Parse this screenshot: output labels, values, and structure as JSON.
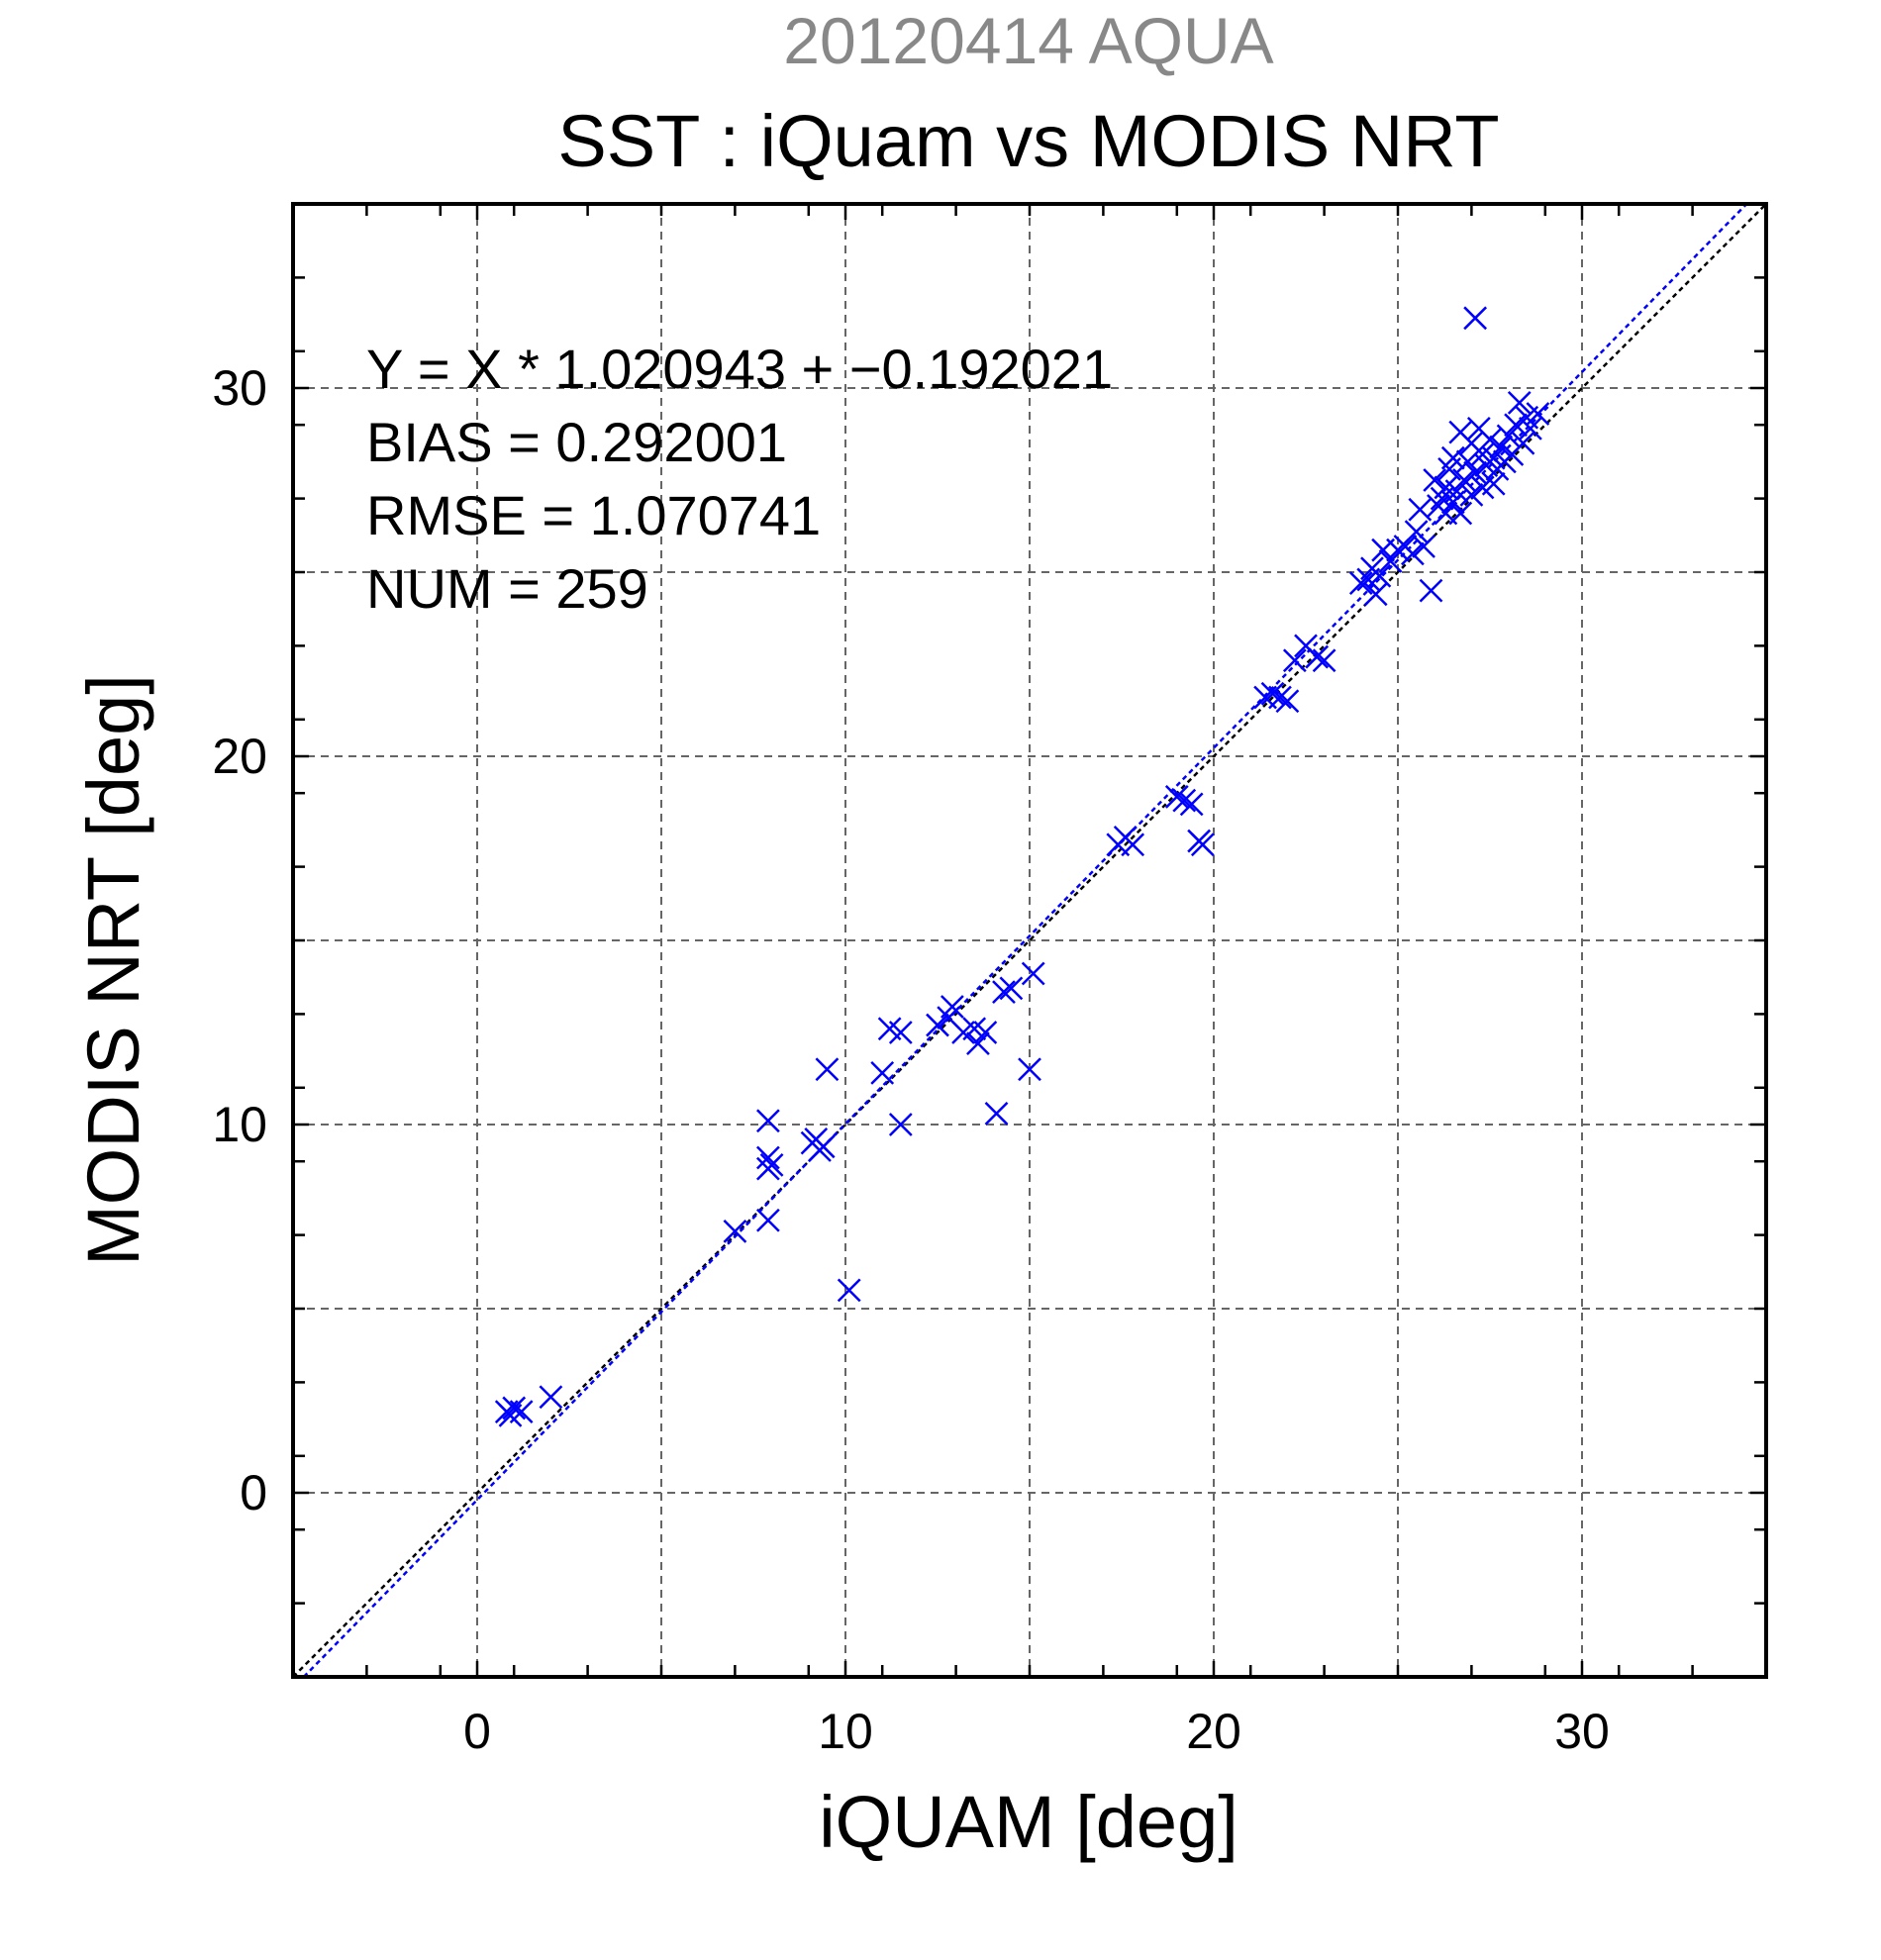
{
  "chart_data": {
    "type": "scatter",
    "supertitle": "20120414 AQUA",
    "title": "SST : iQuam vs MODIS NRT",
    "xlabel": "iQUAM [deg]",
    "ylabel": "MODIS NRT [deg]",
    "xlim": [
      -5,
      35
    ],
    "ylim": [
      -5,
      35
    ],
    "x_major_ticks": [
      0,
      10,
      20,
      30
    ],
    "y_major_ticks": [
      0,
      10,
      20,
      30
    ],
    "grid": true,
    "annotations": [
      "Y = X * 1.020943 + −0.192021",
      "BIAS = 0.292001",
      "RMSE = 1.070741",
      "NUM = 259"
    ],
    "lines": [
      {
        "kind": "one-to-one",
        "slope": 1,
        "intercept": 0,
        "color": "#000000"
      },
      {
        "kind": "regression",
        "slope": 1.020943,
        "intercept": -0.192021,
        "color": "#0000ff"
      }
    ],
    "marker": "x",
    "marker_color": "#0000ff",
    "points": [
      [
        0.8,
        2.2
      ],
      [
        0.9,
        2.1
      ],
      [
        1.0,
        2.3
      ],
      [
        1.2,
        2.2
      ],
      [
        2.0,
        2.6
      ],
      [
        7.0,
        7.1
      ],
      [
        7.9,
        10.1
      ],
      [
        7.9,
        9.1
      ],
      [
        7.9,
        8.8
      ],
      [
        8.0,
        8.9
      ],
      [
        7.9,
        7.4
      ],
      [
        9.1,
        9.5
      ],
      [
        9.2,
        9.6
      ],
      [
        9.3,
        9.3
      ],
      [
        9.4,
        9.4
      ],
      [
        9.5,
        11.5
      ],
      [
        10.1,
        5.5
      ],
      [
        11.0,
        11.4
      ],
      [
        11.2,
        12.6
      ],
      [
        11.5,
        12.5
      ],
      [
        11.5,
        10.0
      ],
      [
        12.5,
        12.7
      ],
      [
        12.8,
        12.9
      ],
      [
        12.9,
        13.2
      ],
      [
        13.2,
        12.5
      ],
      [
        13.5,
        12.6
      ],
      [
        13.6,
        12.2
      ],
      [
        13.8,
        12.5
      ],
      [
        14.1,
        10.3
      ],
      [
        14.3,
        13.6
      ],
      [
        14.5,
        13.7
      ],
      [
        15.0,
        11.5
      ],
      [
        15.1,
        14.1
      ],
      [
        17.4,
        17.6
      ],
      [
        17.6,
        17.8
      ],
      [
        17.8,
        17.6
      ],
      [
        19.0,
        18.9
      ],
      [
        19.2,
        18.8
      ],
      [
        19.4,
        18.7
      ],
      [
        19.6,
        17.7
      ],
      [
        19.7,
        17.6
      ],
      [
        21.4,
        21.6
      ],
      [
        21.6,
        21.7
      ],
      [
        21.8,
        21.6
      ],
      [
        22.0,
        21.5
      ],
      [
        22.2,
        22.6
      ],
      [
        22.5,
        23.0
      ],
      [
        22.8,
        22.7
      ],
      [
        23.0,
        22.6
      ],
      [
        24.0,
        24.7
      ],
      [
        24.2,
        24.8
      ],
      [
        24.3,
        25.1
      ],
      [
        24.4,
        24.4
      ],
      [
        24.5,
        24.9
      ],
      [
        24.6,
        25.6
      ],
      [
        24.8,
        25.3
      ],
      [
        25.0,
        25.6
      ],
      [
        25.2,
        25.7
      ],
      [
        25.4,
        25.5
      ],
      [
        25.5,
        26.1
      ],
      [
        25.6,
        26.7
      ],
      [
        25.7,
        25.7
      ],
      [
        25.9,
        24.5
      ],
      [
        26.0,
        27.5
      ],
      [
        26.1,
        26.8
      ],
      [
        26.2,
        27.0
      ],
      [
        26.3,
        26.6
      ],
      [
        26.3,
        27.3
      ],
      [
        26.4,
        27.8
      ],
      [
        26.5,
        26.9
      ],
      [
        26.5,
        28.1
      ],
      [
        26.6,
        27.2
      ],
      [
        26.7,
        26.6
      ],
      [
        26.7,
        28.8
      ],
      [
        26.8,
        27.5
      ],
      [
        26.9,
        28.0
      ],
      [
        27.0,
        27.1
      ],
      [
        27.0,
        28.5
      ],
      [
        27.1,
        27.7
      ],
      [
        27.1,
        31.9
      ],
      [
        27.2,
        28.9
      ],
      [
        27.3,
        27.3
      ],
      [
        27.3,
        28.2
      ],
      [
        27.4,
        27.9
      ],
      [
        27.5,
        28.6
      ],
      [
        27.6,
        27.4
      ],
      [
        27.6,
        28.1
      ],
      [
        27.7,
        27.8
      ],
      [
        27.8,
        28.4
      ],
      [
        27.9,
        28.0
      ],
      [
        28.0,
        28.7
      ],
      [
        28.1,
        28.2
      ],
      [
        28.2,
        29.0
      ],
      [
        28.3,
        29.6
      ],
      [
        28.4,
        28.5
      ],
      [
        28.5,
        29.2
      ],
      [
        28.6,
        28.9
      ],
      [
        28.8,
        29.3
      ]
    ]
  }
}
